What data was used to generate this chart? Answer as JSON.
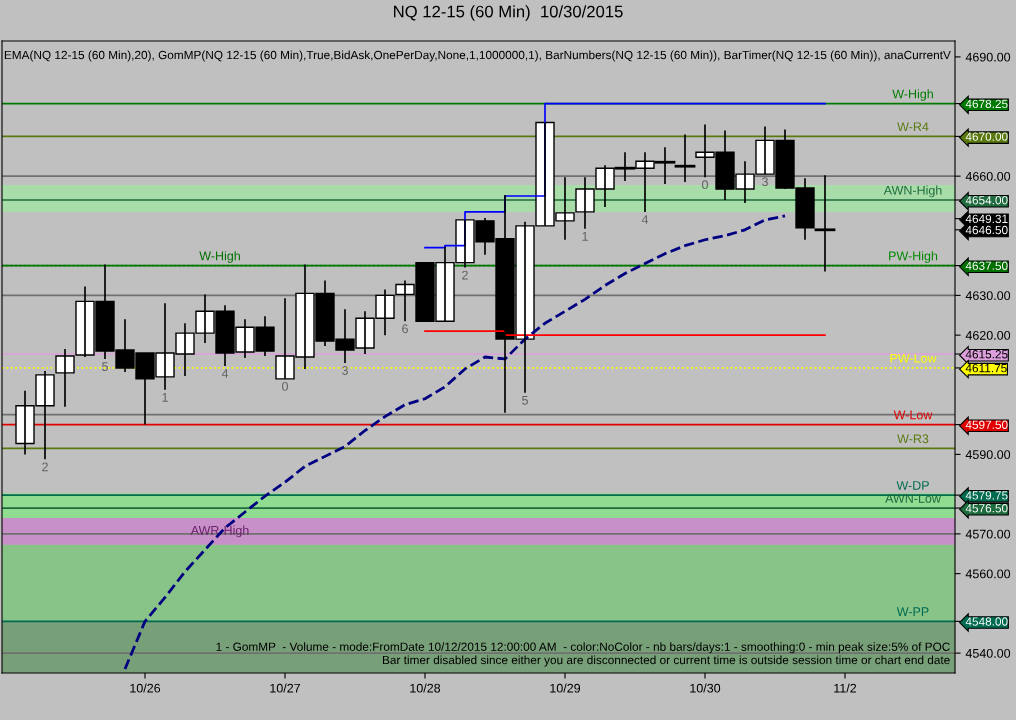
{
  "chart_data": {
    "type": "candlestick",
    "title": "NQ 12-15 (60 Min)  10/30/2015",
    "subtitle": "EMA(NQ 12-15 (60 Min),20), GomMP(NQ 12-15 (60 Min),True,BidAsk,OnePerDay,None,1,1000000,1), BarNumbers(NQ 12-15 (60 Min)), BarTimer(NQ 12-15 (60 Min)), anaCurrentV",
    "categories": [
      null,
      null,
      null,
      null,
      null,
      null,
      "10/26",
      null,
      null,
      null,
      null,
      null,
      null,
      "10/27",
      null,
      null,
      null,
      null,
      null,
      null,
      "10/28",
      null,
      null,
      null,
      null,
      null,
      null,
      "10/29",
      null,
      null,
      null,
      null,
      null,
      null,
      "10/30",
      null,
      null,
      null,
      null,
      null,
      null,
      "11/2"
    ],
    "ohlc": [
      [
        4592.75,
        4606,
        4590,
        4602.25
      ],
      [
        4602.25,
        4611,
        4588.75,
        4610
      ],
      [
        4610.5,
        4616.5,
        4602,
        4614.75
      ],
      [
        4615,
        4632.25,
        4614.5,
        4628.5
      ],
      [
        4628.5,
        4637.75,
        4614,
        4616
      ],
      [
        4616.25,
        4624,
        4610.75,
        4611.75
      ],
      [
        4615.5,
        4615.5,
        4597.5,
        4609
      ],
      [
        4609.5,
        4628,
        4606.25,
        4615.5
      ],
      [
        4615.25,
        4623,
        4609.75,
        4620.5
      ],
      [
        4620.5,
        4630.25,
        4618,
        4626
      ],
      [
        4626,
        4627.5,
        4612.25,
        4615.5
      ],
      [
        4615.75,
        4624,
        4614.25,
        4622
      ],
      [
        4622,
        4624.75,
        4614.75,
        4616
      ],
      [
        4609,
        4629.25,
        4609,
        4614.75
      ],
      [
        4614.5,
        4637.75,
        4611.5,
        4630.5
      ],
      [
        4630.5,
        4633.75,
        4617.25,
        4618.5
      ],
      [
        4619,
        4626.5,
        4613,
        4616.25
      ],
      [
        4616.75,
        4626,
        4615.25,
        4624.25
      ],
      [
        4624.25,
        4631.5,
        4620,
        4630
      ],
      [
        4630.25,
        4633.75,
        4623.5,
        4632.75
      ],
      [
        4638.25,
        4638.25,
        4623.5,
        4623.5
      ],
      [
        4623.5,
        4642.25,
        4623.5,
        4638.25
      ],
      [
        4638.25,
        4649,
        4637,
        4649
      ],
      [
        4648.75,
        4649.5,
        4640.25,
        4643.5
      ],
      [
        4644.25,
        4655.25,
        4600.5,
        4619
      ],
      [
        4619,
        4648.5,
        4605.5,
        4647.5
      ],
      [
        4647.5,
        4673.5,
        4647.5,
        4673.5
      ],
      [
        4648.75,
        4659.75,
        4644,
        4650.75
      ],
      [
        4651,
        4659.75,
        4646.75,
        4656.75
      ],
      [
        4656.75,
        4662.75,
        4652.25,
        4662
      ],
      [
        4662,
        4666,
        4658.75,
        4662
      ],
      [
        4662,
        4666,
        4651,
        4663.75
      ],
      [
        4663.5,
        4667.25,
        4658,
        4663.5
      ],
      [
        4662.5,
        4670.5,
        4658.5,
        4662.5
      ],
      [
        4664.75,
        4673,
        4659.75,
        4666
      ],
      [
        4666,
        4671.5,
        4654,
        4656.75
      ],
      [
        4656.75,
        4663.75,
        4653.25,
        4660.5
      ],
      [
        4660.5,
        4672.5,
        4660.5,
        4669
      ],
      [
        4669,
        4671.75,
        4656.75,
        4657
      ],
      [
        4657,
        4659.5,
        4644,
        4647
      ],
      [
        4646.5,
        4660.25,
        4636,
        4646.5
      ],
      null
    ],
    "value_labels": [
      null,
      "2",
      null,
      null,
      "5",
      null,
      null,
      "1",
      null,
      null,
      "4",
      null,
      null,
      "0",
      null,
      null,
      "3",
      null,
      null,
      "6",
      null,
      null,
      "2",
      null,
      null,
      "5",
      null,
      null,
      "1",
      null,
      null,
      "4",
      null,
      null,
      "0",
      null,
      null,
      "3",
      null,
      null,
      null,
      null
    ],
    "series": [
      {
        "type": "line",
        "color": "#000080",
        "line_style": "dashed",
        "values": [
          null,
          null,
          null,
          null,
          null,
          4536,
          4548,
          4554,
          4560.5,
          4566,
          4571.5,
          4575.5,
          4579.5,
          4583,
          4587,
          4589.5,
          4592,
          4596,
          4599.5,
          4602.5,
          4604,
          4607,
          4611.5,
          4614.5,
          4614,
          4619,
          4623,
          4626,
          4629,
          4632.5,
          4635.5,
          4638,
          4640.5,
          4642.5,
          4644,
          4645,
          4646.5,
          4649,
          4650,
          null,
          null,
          null
        ]
      },
      {
        "type": "step",
        "color": "#0000ff",
        "line_style": "solid",
        "values": [
          null,
          null,
          null,
          null,
          null,
          null,
          null,
          null,
          null,
          null,
          null,
          null,
          null,
          null,
          null,
          null,
          null,
          null,
          null,
          null,
          4642,
          4642.5,
          4651,
          4651,
          4655,
          4655,
          4678.25,
          4678.25,
          4678.25,
          4678.25,
          4678.25,
          4678.25,
          4678.25,
          4678.25,
          4678.25,
          4678.25,
          4678.25,
          4678.25,
          4678.25,
          4678.25,
          4678.25,
          null
        ]
      },
      {
        "type": "step",
        "color": "#ff0000",
        "line_style": "solid",
        "values": [
          null,
          null,
          null,
          null,
          null,
          null,
          null,
          null,
          null,
          null,
          null,
          null,
          null,
          null,
          null,
          null,
          null,
          null,
          null,
          null,
          4621,
          4621,
          4621,
          4621,
          4620,
          4620,
          4620,
          4620,
          4620,
          4620,
          4620,
          4620,
          4620,
          4620,
          4620,
          4620,
          4620,
          4620,
          4620,
          4620,
          4620,
          null
        ]
      }
    ],
    "ylim": [
      4535,
      4694
    ],
    "yticks": [
      {
        "value": 4540,
        "label": "4540.00"
      },
      {
        "value": 4560,
        "label": "4560.00"
      },
      {
        "value": 4570,
        "label": "4570.00"
      },
      {
        "value": 4590,
        "label": "4590.00"
      },
      {
        "value": 4620,
        "label": "4620.00"
      },
      {
        "value": 4630,
        "label": "4630.00"
      },
      {
        "value": 4660,
        "label": "4660.00"
      },
      {
        "value": 4670,
        "label": "4670.00"
      },
      {
        "value": 4690,
        "label": "4690.00"
      },
      {
        "value": 4678.25,
        "label": "4678.25"
      },
      {
        "value": 4654,
        "label": "4654.00"
      },
      {
        "value": 4649.31,
        "label": "4649.31"
      },
      {
        "value": 4646.5,
        "label": "4646.50"
      },
      {
        "value": 4637.5,
        "label": "4637.50"
      },
      {
        "value": 4615.25,
        "label": "4615.25"
      },
      {
        "value": 4611.75,
        "label": "4611.75"
      },
      {
        "value": 4597.5,
        "label": "4597.50"
      },
      {
        "value": 4579.75,
        "label": "4579.75"
      },
      {
        "value": 4576.5,
        "label": "4576.50"
      },
      {
        "value": 4548,
        "label": "4548.00"
      }
    ],
    "bands": [
      {
        "axis": "y",
        "from": 4651,
        "to": 4657.75,
        "color": "#a8dca8"
      },
      {
        "axis": "y",
        "from": 4573.25,
        "to": 4580.25,
        "color": "#90dc90"
      },
      {
        "axis": "y",
        "from": 4548,
        "to": 4573.25,
        "color": "#88c488"
      },
      {
        "axis": "y",
        "from": 4535,
        "to": 4548,
        "color": "#78a078"
      },
      {
        "axis": "y",
        "from": 4567.25,
        "to": 4574,
        "label": "AWR-High",
        "color": "#c890c8"
      }
    ],
    "ref_lines": [
      {
        "axis": "y",
        "value": 4660,
        "color": "#707070"
      },
      {
        "axis": "y",
        "value": 4630,
        "color": "#707070"
      },
      {
        "axis": "y",
        "value": 4600,
        "color": "#707070"
      },
      {
        "axis": "y",
        "value": 4570,
        "color": "#707070"
      },
      {
        "axis": "y",
        "value": 4540,
        "color": "#707070"
      },
      {
        "axis": "y",
        "value": 4670,
        "label": "W-R4",
        "color": "#5a7a10"
      },
      {
        "axis": "y",
        "value": 4637.5,
        "label": "W-High",
        "color": "#007000"
      },
      {
        "axis": "y",
        "value": 4637.5,
        "label": "PW-High",
        "color": "#008800",
        "line_style": "dotted"
      },
      {
        "axis": "y",
        "value": 4678.25,
        "label": "W-High",
        "color": "#007a00"
      },
      {
        "axis": "y",
        "value": 4591.5,
        "label": "W-R3",
        "color": "#5a7a10"
      },
      {
        "axis": "y",
        "value": 4597.5,
        "label": "W-Low",
        "color": "#e00000"
      },
      {
        "axis": "y",
        "value": 4611.75,
        "label": "PW-Low",
        "color": "#ffff00",
        "line_style": "dotted"
      },
      {
        "axis": "y",
        "value": 4615.25,
        "color": "#dda0dd"
      },
      {
        "axis": "y",
        "value": 4654,
        "label": "AWN-High",
        "color": "#1e6b3e"
      },
      {
        "axis": "y",
        "value": 4579.75,
        "label": "W-DP",
        "color": "#006b50"
      },
      {
        "axis": "y",
        "value": 4576.5,
        "label": "AWN-Low",
        "color": "#1e6b3e"
      },
      {
        "axis": "y",
        "value": 4548,
        "label": "W-PP",
        "color": "#006b50"
      }
    ],
    "annotations": [
      "1 - GomMP  - Volume - mode:FromDate 10/12/2015 12:00:00 AM  - color:NoColor - nb bars/days:1 - smoothing:0 - min peak size:5% of POC",
      "Bar timer disabled since either you are disconnected or current time is outside session time or chart end date"
    ],
    "grid": false
  }
}
